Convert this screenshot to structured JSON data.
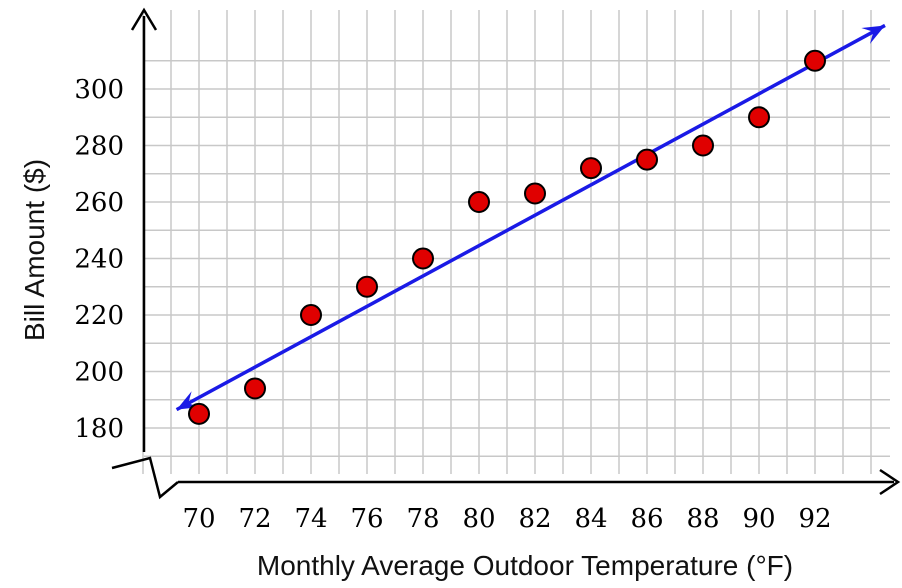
{
  "chart_data": {
    "type": "scatter",
    "xlabel": "Monthly Average Outdoor Temperature (°F)",
    "ylabel": "Bill Amount ($)",
    "x_ticks": [
      70,
      72,
      74,
      76,
      78,
      80,
      82,
      84,
      86,
      88,
      90,
      92
    ],
    "y_ticks": [
      180,
      200,
      220,
      240,
      260,
      280,
      300
    ],
    "xlim": [
      68,
      94
    ],
    "ylim": [
      165,
      315
    ],
    "grid": true,
    "axis_break": "y-axis below 180",
    "points": {
      "x": [
        70,
        72,
        74,
        76,
        78,
        80,
        82,
        84,
        86,
        88,
        90,
        92
      ],
      "y": [
        185,
        194,
        220,
        230,
        240,
        260,
        263,
        272,
        275,
        280,
        290,
        310
      ]
    },
    "trend_line": {
      "from": [
        69.2,
        186.5
      ],
      "to": [
        94.5,
        322.5
      ],
      "color": "#1a1ae6"
    },
    "point_color": "#e00000",
    "point_stroke": "#000000"
  }
}
